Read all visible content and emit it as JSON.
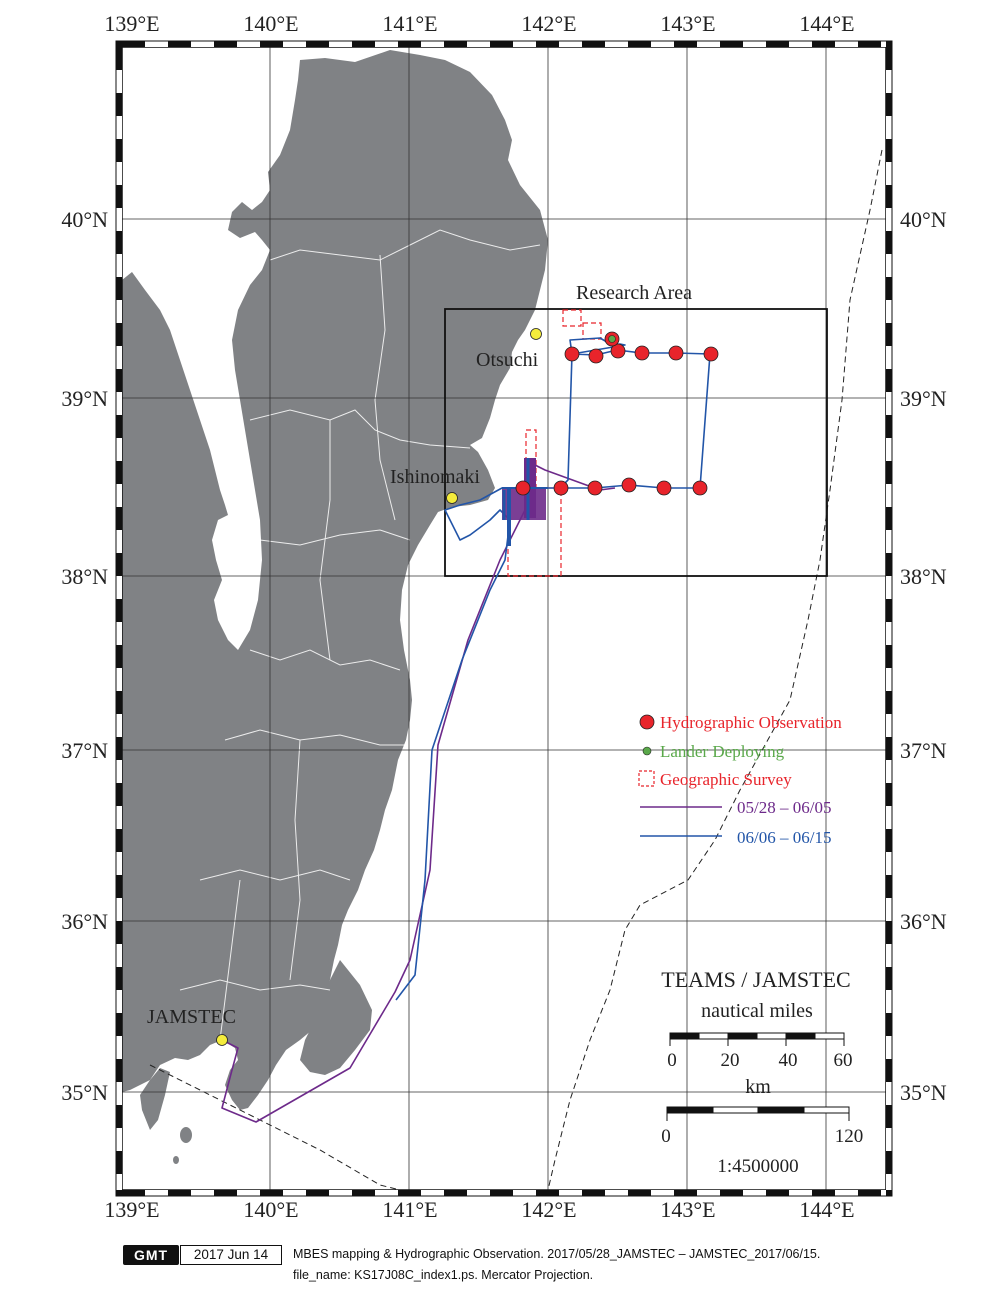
{
  "map": {
    "projection": "Mercator Projection",
    "lon_range": [
      138.95,
      144.44
    ],
    "lat_range": [
      34.48,
      40.96
    ],
    "lon_ticks": [
      "139°E",
      "140°E",
      "141°E",
      "142°E",
      "143°E",
      "144°E"
    ],
    "lat_ticks": [
      "35°N",
      "36°N",
      "37°N",
      "38°N",
      "39°N",
      "40°N"
    ],
    "land_color": "#808285",
    "boundary_color": "#ffffff"
  },
  "places": {
    "research_area": "Research Area",
    "otsuchi": "Otsuchi",
    "ishinomaki": "Ishinomaki",
    "jamstec": "JAMSTEC"
  },
  "legend": {
    "hydrographic": "Hydrographic Observation",
    "lander": "Lander Deploying",
    "survey": "Geographic Survey",
    "track1": "05/28 – 06/05",
    "track2": "06/06 – 06/15",
    "colors": {
      "hydrographic": "#e8242b",
      "lander": "#5aa84a",
      "survey": "#e8242b",
      "track1": "#6d2a8a",
      "track2": "#2255a8"
    }
  },
  "scale": {
    "title": "TEAMS / JAMSTEC",
    "nm_label": "nautical miles",
    "nm_ticks": [
      "0",
      "20",
      "40",
      "60"
    ],
    "km_label": "km",
    "km_ticks": [
      "0",
      "120"
    ],
    "ratio": "1:4500000"
  },
  "footer": {
    "logo": "GMT",
    "date": "2017 Jun 14",
    "line1": "MBES mapping & Hydrographic Observation. 2017/05/28_JAMSTEC – JAMSTEC_2017/06/15.",
    "line2": "file_name: KS17J08C_index1.ps. Mercator Projection."
  }
}
